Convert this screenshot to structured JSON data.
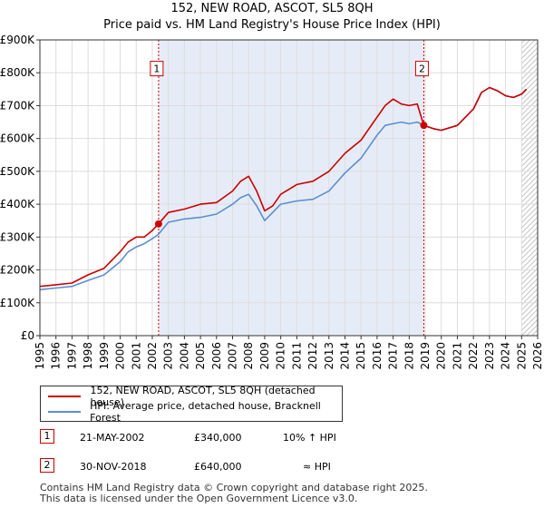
{
  "colors": {
    "property": "#cc0000",
    "hpi": "#5b8fd0",
    "band": "#e6ecf7",
    "marker": "#cc0000",
    "grid": "#dddddd"
  },
  "chart_data": {
    "type": "line",
    "title": "152, NEW ROAD, ASCOT, SL5 8QH",
    "subtitle": "Price paid vs. HM Land Registry's House Price Index (HPI)",
    "xlabel": "",
    "ylabel": "",
    "xlim": [
      1995,
      2026
    ],
    "ylim": [
      0,
      900000
    ],
    "x_ticks": [
      "1995",
      "1996",
      "1997",
      "1998",
      "1999",
      "2000",
      "2001",
      "2002",
      "2003",
      "2004",
      "2005",
      "2006",
      "2007",
      "2008",
      "2009",
      "2010",
      "2011",
      "2012",
      "2013",
      "2014",
      "2015",
      "2016",
      "2017",
      "2018",
      "2019",
      "2020",
      "2021",
      "2022",
      "2023",
      "2024",
      "2025",
      "2026"
    ],
    "y_ticks": [
      {
        "value": 0,
        "label": "£0"
      },
      {
        "value": 100000,
        "label": "£100K"
      },
      {
        "value": 200000,
        "label": "£200K"
      },
      {
        "value": 300000,
        "label": "£300K"
      },
      {
        "value": 400000,
        "label": "£400K"
      },
      {
        "value": 500000,
        "label": "£500K"
      },
      {
        "value": 600000,
        "label": "£600K"
      },
      {
        "value": 700000,
        "label": "£700K"
      },
      {
        "value": 800000,
        "label": "£800K"
      },
      {
        "value": 900000,
        "label": "£900K"
      }
    ],
    "grid": true,
    "shaded_period": [
      2002.39,
      2018.91
    ],
    "hatched_from": 2025.0,
    "series": [
      {
        "name": "152, NEW ROAD, ASCOT, SL5 8QH (detached house)",
        "x": [
          1995.0,
          1996.0,
          1997.0,
          1998.0,
          1999.0,
          2000.0,
          2000.5,
          2001.0,
          2001.5,
          2002.0,
          2002.39,
          2003.0,
          2004.0,
          2005.0,
          2006.0,
          2007.0,
          2007.5,
          2008.0,
          2008.5,
          2009.0,
          2009.5,
          2010.0,
          2011.0,
          2012.0,
          2013.0,
          2014.0,
          2015.0,
          2016.0,
          2016.5,
          2017.0,
          2017.5,
          2018.0,
          2018.5,
          2018.91,
          2019.5,
          2020.0,
          2021.0,
          2022.0,
          2022.5,
          2023.0,
          2023.5,
          2024.0,
          2024.5,
          2025.0,
          2025.3
        ],
        "values": [
          150000,
          155000,
          160000,
          185000,
          205000,
          255000,
          285000,
          300000,
          300000,
          320000,
          340000,
          375000,
          385000,
          400000,
          405000,
          440000,
          470000,
          485000,
          440000,
          380000,
          395000,
          430000,
          460000,
          470000,
          500000,
          555000,
          595000,
          665000,
          700000,
          720000,
          705000,
          700000,
          705000,
          640000,
          630000,
          625000,
          640000,
          690000,
          740000,
          755000,
          745000,
          730000,
          725000,
          735000,
          750000
        ]
      },
      {
        "name": "HPI: Average price, detached house, Bracknell Forest",
        "x": [
          1995.0,
          1996.0,
          1997.0,
          1998.0,
          1999.0,
          2000.0,
          2000.5,
          2001.0,
          2001.5,
          2002.0,
          2002.39,
          2003.0,
          2004.0,
          2005.0,
          2006.0,
          2007.0,
          2007.5,
          2008.0,
          2008.5,
          2009.0,
          2009.5,
          2010.0,
          2011.0,
          2012.0,
          2013.0,
          2014.0,
          2015.0,
          2016.0,
          2016.5,
          2017.0,
          2017.5,
          2018.0,
          2018.5,
          2018.91,
          2019.5,
          2020.0,
          2021.0,
          2022.0,
          2022.5,
          2023.0,
          2023.5,
          2024.0,
          2024.5,
          2025.0,
          2025.3
        ],
        "values": [
          140000,
          145000,
          150000,
          168000,
          185000,
          225000,
          255000,
          270000,
          280000,
          295000,
          309000,
          345000,
          355000,
          360000,
          370000,
          400000,
          420000,
          430000,
          395000,
          350000,
          375000,
          400000,
          410000,
          415000,
          440000,
          495000,
          540000,
          610000,
          640000,
          645000,
          650000,
          645000,
          650000,
          640000,
          630000,
          625000,
          640000,
          690000,
          740000,
          755000,
          745000,
          730000,
          725000,
          735000,
          750000
        ]
      }
    ],
    "sales": [
      {
        "label": "1",
        "x": 2002.39,
        "value": 340000
      },
      {
        "label": "2",
        "x": 2018.91,
        "value": 640000
      }
    ]
  },
  "sales_table": [
    {
      "num": "1",
      "date": "21-MAY-2002",
      "price": "£340,000",
      "hpi": "10% ↑ HPI"
    },
    {
      "num": "2",
      "date": "30-NOV-2018",
      "price": "£640,000",
      "hpi": "≈ HPI"
    }
  ],
  "footer": {
    "line1": "Contains HM Land Registry data © Crown copyright and database right 2025.",
    "line2": "This data is licensed under the Open Government Licence v3.0."
  }
}
